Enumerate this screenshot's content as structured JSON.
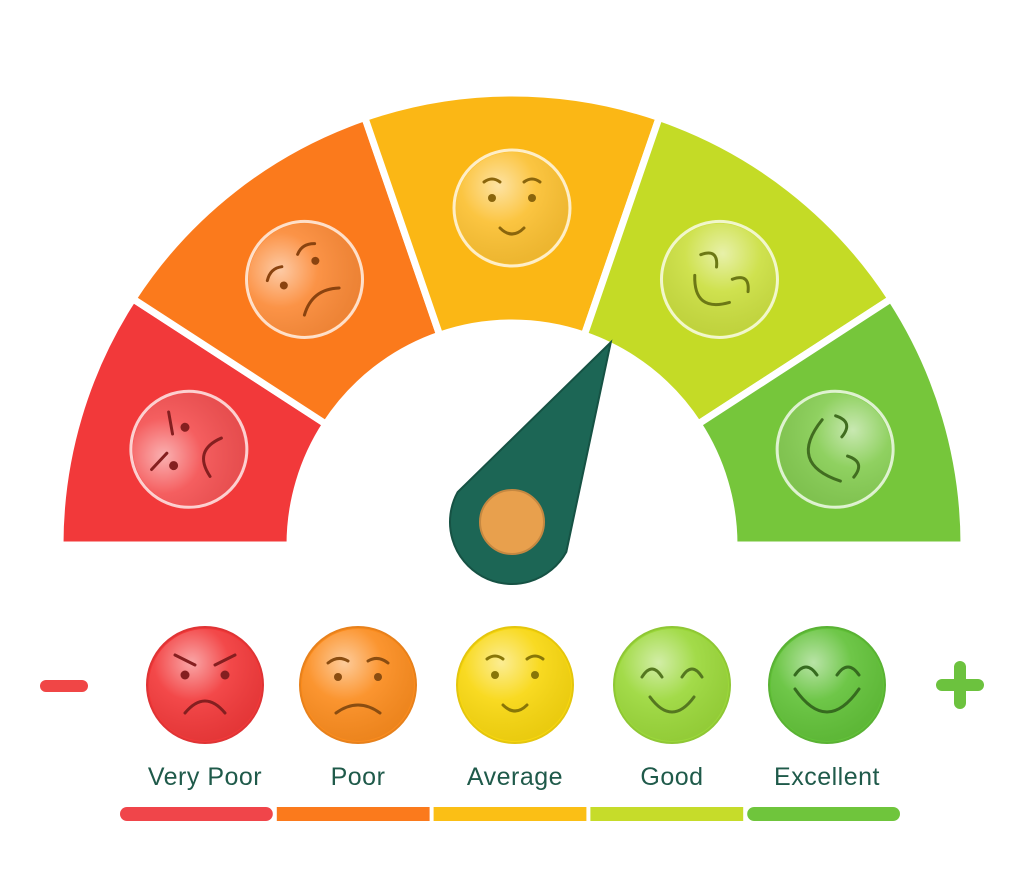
{
  "rating_meter": {
    "segments": [
      {
        "id": "very-poor",
        "mood": "angry",
        "color": "#f2393a"
      },
      {
        "id": "poor",
        "mood": "sad",
        "color": "#fb7a1c"
      },
      {
        "id": "average",
        "mood": "neutral",
        "color": "#fbb715"
      },
      {
        "id": "good",
        "mood": "happy",
        "color": "#c4db26"
      },
      {
        "id": "excellent",
        "mood": "very-happy",
        "color": "#76c63b"
      }
    ],
    "needle": {
      "color": "#1c6655",
      "hub_color": "#e8a04d",
      "value_fraction": 0.66
    }
  },
  "scale": {
    "minus_symbol": "−",
    "plus_symbol": "+",
    "minus_color": "#f04646",
    "plus_color": "#6cc23e",
    "options": [
      {
        "label": "Very Poor",
        "mood": "angry",
        "color": "#f2393a"
      },
      {
        "label": "Poor",
        "mood": "sad",
        "color": "#fb8c1e"
      },
      {
        "label": "Average",
        "mood": "neutral",
        "color": "#f8d70f"
      },
      {
        "label": "Good",
        "mood": "happy",
        "color": "#9bd83a"
      },
      {
        "label": "Excellent",
        "mood": "very-happy",
        "color": "#62c239"
      }
    ],
    "bar_colors": [
      "#f0454a",
      "#fb7a1c",
      "#fbbf15",
      "#c6dc2a",
      "#6fc53c"
    ]
  }
}
